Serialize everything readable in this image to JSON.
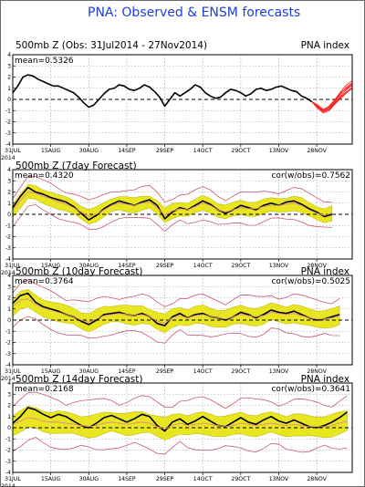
{
  "title": "PNA: Observed & ENSM forecasts",
  "year_label": "2014",
  "colors": {
    "title": "#1f3fd6",
    "observed": "#000000",
    "forecast": "#ff2020",
    "spread_fill": "#e8e620",
    "spread_edge": "#b8b000",
    "ensemble_limits": "#c85a6a",
    "forecast_mean": "#e08a8a"
  },
  "chart_data": [
    {
      "type": "line",
      "title": "500mb Z (Obs: 31Jul2014 - 27Nov2014)",
      "right_label": "PNA index",
      "stat": "mean=0.5326",
      "ylim": [
        -4,
        4
      ],
      "yticks": [
        -4,
        -3,
        -2,
        -1,
        0,
        1,
        2,
        3,
        4
      ],
      "xticks": [
        "31JUL",
        "15AUG",
        "30AUG",
        "14SEP",
        "29SEP",
        "14OCT",
        "29OCT",
        "13NOV",
        "28NOV"
      ],
      "x_range_days": [
        0,
        134
      ],
      "zero_line": "dashed",
      "series": [
        {
          "kind": "observed",
          "x": [
            0,
            2,
            4,
            6,
            8,
            10,
            12,
            14,
            16,
            18,
            20,
            22,
            24,
            26,
            28,
            30,
            32,
            34,
            36,
            38,
            40,
            42,
            44,
            46,
            48,
            50,
            52,
            54,
            56,
            58,
            60,
            62,
            64,
            66,
            68,
            70,
            72,
            74,
            76,
            78,
            80,
            82,
            84,
            86,
            88,
            90,
            92,
            94,
            96,
            98,
            100,
            102,
            104,
            106,
            108,
            110,
            112,
            114,
            116,
            118
          ],
          "values": [
            0.6,
            1.2,
            2.0,
            2.2,
            2.1,
            1.8,
            1.6,
            1.4,
            1.2,
            1.2,
            1.0,
            0.8,
            0.6,
            0.2,
            -0.3,
            -0.7,
            -0.5,
            0.0,
            0.5,
            0.9,
            1.0,
            1.3,
            1.2,
            0.9,
            0.8,
            1.0,
            1.3,
            1.1,
            0.7,
            0.2,
            -0.6,
            0.0,
            0.6,
            0.3,
            0.6,
            0.9,
            1.3,
            1.1,
            0.6,
            0.3,
            0.1,
            0.2,
            0.6,
            0.9,
            0.8,
            0.6,
            0.3,
            0.5,
            0.9,
            1.0,
            0.8,
            0.9,
            1.1,
            1.2,
            1.0,
            0.8,
            0.7,
            0.3,
            0.1,
            -0.2
          ]
        }
      ],
      "forecast_plume": {
        "start_day": 118,
        "start_value": -0.2,
        "members": [
          [
            -0.7,
            -1.1,
            -0.9,
            -0.3,
            0.3,
            0.9,
            1.3
          ],
          [
            -0.6,
            -1.0,
            -0.8,
            -0.2,
            0.5,
            1.1,
            1.5
          ],
          [
            -0.8,
            -1.2,
            -1.0,
            -0.4,
            0.2,
            0.7,
            1.1
          ],
          [
            -0.5,
            -0.9,
            -0.6,
            0.0,
            0.7,
            1.3,
            1.7
          ],
          [
            -0.7,
            -1.0,
            -0.7,
            -0.1,
            0.6,
            1.0,
            1.4
          ],
          [
            -0.6,
            -1.1,
            -0.9,
            -0.4,
            0.1,
            0.6,
            1.0
          ]
        ],
        "step_days": 2.3
      }
    },
    {
      "type": "line",
      "title": "500mb Z (7day Forecast)",
      "right_label": "",
      "stat": "mean=0.4320",
      "correlation": "cor(w/obs)=0.7562",
      "ylim": [
        -4,
        4
      ],
      "yticks": [
        -4,
        -3,
        -2,
        -1,
        0,
        1,
        2,
        3,
        4
      ],
      "xticks": [
        "31JUL",
        "15AUG",
        "30AUG",
        "14SEP",
        "29SEP",
        "14OCT",
        "29OCT",
        "13NOV",
        "28NOV"
      ],
      "x_range_days": [
        0,
        134
      ],
      "zero_line": "dashed",
      "series": [
        {
          "kind": "observed",
          "x": [
            0,
            3,
            6,
            9,
            12,
            15,
            18,
            21,
            24,
            27,
            30,
            33,
            36,
            39,
            42,
            45,
            48,
            51,
            54,
            57,
            60,
            63,
            66,
            69,
            72,
            75,
            78,
            81,
            84,
            87,
            90,
            93,
            96,
            99,
            102,
            105,
            108,
            111,
            114,
            117,
            120,
            123,
            126
          ],
          "values": [
            0.6,
            1.6,
            2.4,
            2.0,
            1.8,
            1.5,
            1.3,
            1.1,
            0.7,
            0.1,
            -0.5,
            -0.1,
            0.5,
            0.9,
            1.2,
            1.0,
            0.8,
            1.1,
            1.3,
            0.8,
            -0.4,
            0.2,
            0.6,
            0.4,
            0.8,
            1.2,
            0.9,
            0.4,
            0.1,
            0.4,
            0.8,
            0.6,
            0.4,
            0.8,
            1.0,
            0.8,
            1.1,
            1.2,
            0.9,
            0.5,
            0.2,
            -0.2,
            0.0
          ]
        },
        {
          "kind": "forecast_mean",
          "x": [
            0,
            3,
            6,
            9,
            12,
            15,
            18,
            21,
            24,
            27,
            30,
            33,
            36,
            39,
            42,
            45,
            48,
            51,
            54,
            57,
            60,
            63,
            66,
            69,
            72,
            75,
            78,
            81,
            84,
            87,
            90,
            93,
            96,
            99,
            102,
            105,
            108,
            111,
            114,
            117,
            120,
            123,
            126
          ],
          "values": [
            0.4,
            1.2,
            2.0,
            1.9,
            1.6,
            1.4,
            1.1,
            0.9,
            0.6,
            0.2,
            -0.2,
            0.0,
            0.4,
            0.8,
            1.0,
            0.9,
            0.8,
            1.0,
            1.1,
            0.6,
            -0.1,
            0.3,
            0.5,
            0.4,
            0.7,
            1.0,
            0.8,
            0.4,
            0.2,
            0.4,
            0.6,
            0.5,
            0.5,
            0.7,
            0.8,
            0.8,
            0.9,
            1.0,
            0.8,
            0.4,
            0.1,
            -0.1,
            0.1
          ]
        }
      ],
      "spread_halfwidth": 0.6,
      "limit_halfwidth": 1.25
    },
    {
      "type": "line",
      "title": "500mb Z (10day Forecast)",
      "right_label": "PNA index",
      "stat": "mean=0.3764",
      "correlation": "cor(w/obs)=0.5025",
      "ylim": [
        -4,
        4
      ],
      "yticks": [
        -4,
        -3,
        -2,
        -1,
        0,
        1,
        2,
        3,
        4
      ],
      "xticks": [
        "31JUL",
        "15AUG",
        "30AUG",
        "14SEP",
        "29SEP",
        "14OCT",
        "29OCT",
        "13NOV",
        "28NOV"
      ],
      "x_range_days": [
        0,
        134
      ],
      "zero_line": "dashed",
      "series": [
        {
          "kind": "observed",
          "x": [
            0,
            3,
            6,
            9,
            12,
            15,
            18,
            21,
            24,
            27,
            30,
            33,
            36,
            39,
            42,
            45,
            48,
            51,
            54,
            57,
            60,
            63,
            66,
            69,
            72,
            75,
            78,
            81,
            84,
            87,
            90,
            93,
            96,
            99,
            102,
            105,
            108,
            111,
            114,
            117,
            120,
            123,
            126,
            129
          ],
          "values": [
            1.5,
            2.2,
            2.4,
            1.6,
            1.2,
            1.0,
            0.8,
            0.5,
            0.3,
            -0.1,
            -0.4,
            0.0,
            0.5,
            0.6,
            0.7,
            0.5,
            0.4,
            0.6,
            0.3,
            -0.3,
            -0.5,
            0.3,
            0.6,
            0.2,
            0.5,
            0.6,
            0.3,
            0.2,
            0.0,
            0.3,
            0.7,
            0.5,
            0.2,
            0.5,
            0.9,
            0.7,
            0.6,
            0.8,
            0.5,
            0.2,
            0.0,
            0.1,
            0.3,
            0.5
          ]
        },
        {
          "kind": "forecast_mean",
          "x": [
            0,
            3,
            6,
            9,
            12,
            15,
            18,
            21,
            24,
            27,
            30,
            33,
            36,
            39,
            42,
            45,
            48,
            51,
            54,
            57,
            60,
            63,
            66,
            69,
            72,
            75,
            78,
            81,
            84,
            87,
            90,
            93,
            96,
            99,
            102,
            105,
            108,
            111,
            114,
            117,
            120,
            123,
            126,
            129
          ],
          "values": [
            1.2,
            1.8,
            1.9,
            1.4,
            1.1,
            0.9,
            0.7,
            0.5,
            0.3,
            0.0,
            -0.2,
            0.1,
            0.4,
            0.5,
            0.6,
            0.5,
            0.4,
            0.5,
            0.3,
            -0.1,
            -0.3,
            0.2,
            0.4,
            0.2,
            0.4,
            0.5,
            0.3,
            0.2,
            0.1,
            0.3,
            0.5,
            0.4,
            0.3,
            0.4,
            0.7,
            0.6,
            0.5,
            0.6,
            0.4,
            0.2,
            0.1,
            0.1,
            0.2,
            0.4
          ]
        }
      ],
      "spread_halfwidth": 0.75,
      "limit_halfwidth": 1.55
    },
    {
      "type": "line",
      "title": "500mb Z (14day Forecast)",
      "right_label": "PNA index",
      "stat": "mean=0.2168",
      "correlation": "cor(w/obs)=0.3641",
      "ylim": [
        -4,
        4
      ],
      "yticks": [
        -4,
        -3,
        -2,
        -1,
        0,
        1,
        2,
        3,
        4
      ],
      "xticks": [
        "31JUL",
        "15AUG",
        "30AUG",
        "14SEP",
        "29SEP",
        "14OCT",
        "29OCT",
        "13NOV",
        "28NOV"
      ],
      "x_range_days": [
        0,
        134
      ],
      "zero_line": "dashed",
      "series": [
        {
          "kind": "observed",
          "x": [
            0,
            3,
            6,
            9,
            12,
            15,
            18,
            21,
            24,
            27,
            30,
            33,
            36,
            39,
            42,
            45,
            48,
            51,
            54,
            57,
            60,
            63,
            66,
            69,
            72,
            75,
            78,
            81,
            84,
            87,
            90,
            93,
            96,
            99,
            102,
            105,
            108,
            111,
            114,
            117,
            120,
            123,
            126,
            129,
            132
          ],
          "values": [
            0.4,
            1.0,
            1.8,
            1.6,
            1.2,
            0.9,
            1.2,
            1.0,
            0.6,
            0.2,
            0.0,
            0.4,
            0.9,
            1.1,
            0.8,
            0.5,
            0.8,
            1.2,
            1.0,
            0.2,
            -0.3,
            0.5,
            0.8,
            0.3,
            0.6,
            1.0,
            0.6,
            0.2,
            0.1,
            0.5,
            0.9,
            0.5,
            0.3,
            0.7,
            1.0,
            0.6,
            0.4,
            0.7,
            0.4,
            0.1,
            0.0,
            0.2,
            0.5,
            0.9,
            1.4
          ]
        },
        {
          "kind": "forecast_mean",
          "x": [
            0,
            3,
            6,
            9,
            12,
            15,
            18,
            21,
            24,
            27,
            30,
            33,
            36,
            39,
            42,
            45,
            48,
            51,
            54,
            57,
            60,
            63,
            66,
            69,
            72,
            75,
            78,
            81,
            84,
            87,
            90,
            93,
            96,
            99,
            102,
            105,
            108,
            111,
            114,
            117,
            120,
            123,
            126,
            129,
            132
          ],
          "values": [
            0.3,
            0.6,
            0.9,
            0.8,
            0.6,
            0.5,
            0.5,
            0.4,
            0.3,
            0.2,
            0.1,
            0.2,
            0.4,
            0.5,
            0.4,
            0.3,
            0.4,
            0.5,
            0.4,
            0.1,
            -0.1,
            0.2,
            0.4,
            0.2,
            0.3,
            0.4,
            0.3,
            0.2,
            0.1,
            0.2,
            0.4,
            0.3,
            0.2,
            0.3,
            0.4,
            0.3,
            0.2,
            0.3,
            0.2,
            0.1,
            0.1,
            0.1,
            0.2,
            0.4,
            0.6
          ]
        }
      ],
      "spread_halfwidth": 0.9,
      "limit_halfwidth": 2.0
    }
  ]
}
